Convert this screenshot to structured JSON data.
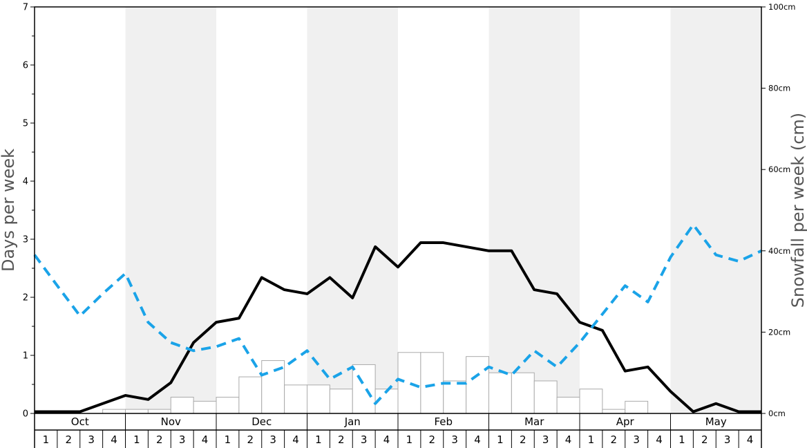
{
  "chart_data": {
    "type": "bar+line",
    "title": "",
    "y_left": {
      "label": "Days per week",
      "ylim": [
        0,
        7
      ],
      "ticks": [
        "0",
        "1",
        "2",
        "3",
        "4",
        "5",
        "6",
        "7"
      ]
    },
    "y_right": {
      "label": "Snowfall per week (cm)",
      "ylim": [
        0,
        100
      ],
      "ticks": [
        "0cm",
        "20cm",
        "40cm",
        "60cm",
        "80cm",
        "100cm"
      ]
    },
    "months": [
      "Oct",
      "Nov",
      "Dec",
      "Jan",
      "Feb",
      "Mar",
      "Apr",
      "May"
    ],
    "weeks_per_month": [
      "1",
      "2",
      "3",
      "4"
    ],
    "shaded_months": [
      "Nov",
      "Jan",
      "Mar",
      "May"
    ],
    "colors": {
      "shade": "#f0f0f0",
      "bar_fill": "#ffffff",
      "bar_stroke": "#aaaaaa",
      "solid_line": "#000000",
      "dashed_line": "#1aa3e8"
    },
    "grid": false,
    "series": [
      {
        "type": "bar",
        "axis": "right",
        "values": [
          0,
          0,
          0,
          1,
          1,
          1,
          4,
          3,
          4,
          9,
          13,
          7,
          7,
          6,
          12,
          6,
          15,
          15,
          8,
          14,
          10,
          10,
          8,
          4,
          6,
          1,
          3,
          0,
          0,
          0,
          0,
          0
        ]
      },
      {
        "type": "line",
        "axis": "left",
        "style": "solid",
        "values": [
          0.03,
          0.03,
          0.03,
          0.17,
          0.31,
          0.24,
          0.53,
          1.22,
          1.57,
          1.64,
          2.34,
          2.13,
          2.06,
          2.34,
          1.99,
          2.87,
          2.52,
          2.94,
          2.94,
          2.87,
          2.8,
          2.8,
          2.13,
          2.06,
          1.57,
          1.43,
          0.73,
          0.8,
          0.38,
          0.03,
          0.17,
          0.03,
          0.03
        ]
      },
      {
        "type": "line",
        "axis": "left",
        "style": "dashed",
        "values": [
          2.73,
          2.2,
          1.68,
          2.06,
          2.41,
          1.57,
          1.22,
          1.08,
          1.15,
          1.29,
          0.66,
          0.8,
          1.08,
          0.59,
          0.8,
          0.17,
          0.59,
          0.45,
          0.52,
          0.52,
          0.8,
          0.66,
          1.08,
          0.8,
          1.22,
          1.71,
          2.2,
          1.92,
          2.69,
          3.25,
          2.73,
          2.62,
          2.8
        ]
      }
    ]
  }
}
